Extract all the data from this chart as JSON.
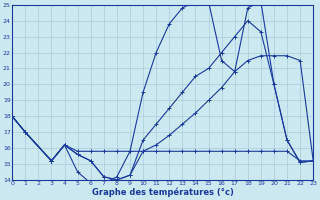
{
  "title": "Graphe des températures (°c)",
  "bg_color": "#cce8f0",
  "line_color": "#1a3a9e",
  "grid_color": "#aaccdd",
  "xlim": [
    0,
    23
  ],
  "ylim": [
    14,
    25
  ],
  "xticks": [
    0,
    1,
    2,
    3,
    4,
    5,
    6,
    7,
    8,
    9,
    10,
    11,
    12,
    13,
    14,
    15,
    16,
    17,
    18,
    19,
    20,
    21,
    22,
    23
  ],
  "yticks": [
    14,
    15,
    16,
    17,
    18,
    19,
    20,
    21,
    22,
    23,
    24,
    25
  ],
  "line1": {
    "x": [
      0,
      1,
      3,
      4,
      5,
      6,
      7,
      8,
      9,
      10,
      11,
      12,
      13,
      14,
      15,
      16,
      17,
      18,
      19,
      20,
      21,
      22,
      23
    ],
    "y": [
      18,
      17,
      15.2,
      16.2,
      14.5,
      13.8,
      13.8,
      14.2,
      15.8,
      19.5,
      22,
      23.8,
      24.8,
      25.2,
      25.2,
      21.5,
      20.8,
      24.8,
      25.2,
      20,
      16.5,
      15.1,
      15.2
    ]
  },
  "line2": {
    "x": [
      0,
      1,
      3,
      4,
      5,
      6,
      7,
      8,
      9,
      10,
      11,
      12,
      13,
      14,
      15,
      16,
      17,
      18,
      19,
      20,
      21,
      22,
      23
    ],
    "y": [
      18,
      17,
      15.2,
      16.2,
      15.8,
      15.8,
      15.8,
      15.8,
      15.8,
      15.8,
      15.8,
      15.8,
      15.8,
      15.8,
      15.8,
      15.8,
      15.8,
      15.8,
      15.8,
      15.8,
      15.8,
      15.2,
      15.2
    ]
  },
  "line3": {
    "x": [
      0,
      1,
      3,
      4,
      5,
      6,
      7,
      8,
      9,
      10,
      11,
      12,
      13,
      14,
      15,
      16,
      17,
      18,
      19,
      20,
      21,
      22,
      23
    ],
    "y": [
      18,
      17,
      15.2,
      16.2,
      15.6,
      15.2,
      14.2,
      14.0,
      14.3,
      16.5,
      17.5,
      18.5,
      19.5,
      20.5,
      21.0,
      22.0,
      23.0,
      24.0,
      23.3,
      20.0,
      16.5,
      15.1,
      15.2
    ]
  },
  "line4": {
    "x": [
      0,
      1,
      3,
      4,
      5,
      6,
      7,
      8,
      9,
      10,
      11,
      12,
      13,
      14,
      15,
      16,
      17,
      18,
      19,
      20,
      21,
      22,
      23
    ],
    "y": [
      18,
      17,
      15.2,
      16.2,
      15.6,
      15.2,
      14.2,
      14.0,
      14.3,
      15.8,
      16.2,
      16.8,
      17.5,
      18.2,
      19.0,
      19.8,
      20.8,
      21.5,
      21.8,
      21.8,
      21.8,
      21.5,
      15.2
    ]
  }
}
